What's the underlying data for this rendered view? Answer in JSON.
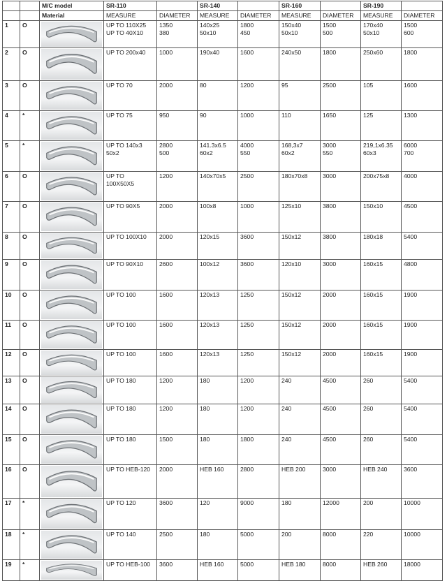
{
  "header": {
    "model_label": "M/C model",
    "material_label": "Material",
    "models": [
      "SR-110",
      "SR-140",
      "SR-160",
      "SR-190"
    ],
    "measure_label": "MEASURE",
    "diameter_label": "DIAMETER"
  },
  "rows": [
    {
      "num": "1",
      "mark": "O",
      "profile-icon": "flat-ring",
      "cells": [
        [
          "UP TO 110X25",
          "UP TO 40X10"
        ],
        [
          "1350",
          "380"
        ],
        [
          "140x25",
          "50x10"
        ],
        [
          "1800",
          "450"
        ],
        [
          "150x40",
          "50x10"
        ],
        [
          "1500",
          "500"
        ],
        [
          "170x40",
          "50x10"
        ],
        [
          "1500",
          "600"
        ]
      ]
    },
    {
      "num": "2",
      "mark": "O",
      "profile-icon": "tall-band-ring",
      "cells": [
        [
          "UP TO 200x40"
        ],
        [
          "1000"
        ],
        [
          "190x40"
        ],
        [
          "1600"
        ],
        [
          "240x50"
        ],
        [
          "1800"
        ],
        [
          "250x60"
        ],
        [
          "1800"
        ]
      ]
    },
    {
      "num": "3",
      "mark": "O",
      "profile-icon": "round-bar-ring",
      "cells": [
        [
          "UP TO 70"
        ],
        [
          "2000"
        ],
        [
          "80"
        ],
        [
          "1200"
        ],
        [
          "95"
        ],
        [
          "2500"
        ],
        [
          "105"
        ],
        [
          "1600"
        ]
      ]
    },
    {
      "num": "4",
      "mark": "*",
      "profile-icon": "round-bar-ring",
      "cells": [
        [
          "UP TO 75"
        ],
        [
          "950"
        ],
        [
          "90"
        ],
        [
          "1000"
        ],
        [
          "110"
        ],
        [
          "1650"
        ],
        [
          "125"
        ],
        [
          "1300"
        ]
      ]
    },
    {
      "num": "5",
      "mark": "*",
      "profile-icon": "tube-ring",
      "cells": [
        [
          "UP TO 140x3",
          "50x2"
        ],
        [
          "2800",
          "500"
        ],
        [
          "141.3x6.5",
          "60x2"
        ],
        [
          "4000",
          "550"
        ],
        [
          "168,3x7",
          "60x2"
        ],
        [
          "3000",
          "550"
        ],
        [
          "219,1x6.35",
          "60x3"
        ],
        [
          "6000",
          "700"
        ]
      ]
    },
    {
      "num": "6",
      "mark": "O",
      "profile-icon": "rect-tube-ring",
      "cells": [
        [
          "UP TO",
          "100X50X5"
        ],
        [
          "1200"
        ],
        [
          "140x70x5"
        ],
        [
          "2500"
        ],
        [
          "180x70x8"
        ],
        [
          "3000"
        ],
        [
          "200x75x8"
        ],
        [
          "4000"
        ]
      ]
    },
    {
      "num": "7",
      "mark": "O",
      "profile-icon": "square-tube-ring",
      "cells": [
        [
          "UP TO 90X5"
        ],
        [
          "2000"
        ],
        [
          "100x8"
        ],
        [
          "1000"
        ],
        [
          "125x10"
        ],
        [
          "3800"
        ],
        [
          "150x10"
        ],
        [
          "4500"
        ]
      ]
    },
    {
      "num": "8",
      "mark": "O",
      "profile-icon": "flat-bar-ring",
      "cells": [
        [
          "UP TO 100X10"
        ],
        [
          "2000"
        ],
        [
          "120x15"
        ],
        [
          "3600"
        ],
        [
          "150x12"
        ],
        [
          "3800"
        ],
        [
          "180x18"
        ],
        [
          "5400"
        ]
      ]
    },
    {
      "num": "9",
      "mark": "O",
      "profile-icon": "angle-ring",
      "cells": [
        [
          "UP TO 90X10"
        ],
        [
          "2600"
        ],
        [
          "100x12"
        ],
        [
          "3600"
        ],
        [
          "120x10"
        ],
        [
          "3000"
        ],
        [
          "160x15"
        ],
        [
          "4800"
        ]
      ]
    },
    {
      "num": "10",
      "mark": "O",
      "profile-icon": "angle-ring",
      "cells": [
        [
          "UP TO 100"
        ],
        [
          "1600"
        ],
        [
          "120x13"
        ],
        [
          "1250"
        ],
        [
          "150x12"
        ],
        [
          "2000"
        ],
        [
          "160x15"
        ],
        [
          "1900"
        ]
      ]
    },
    {
      "num": "11",
      "mark": "O",
      "profile-icon": "angle-ring",
      "cells": [
        [
          "UP TO 100"
        ],
        [
          "1600"
        ],
        [
          "120x13"
        ],
        [
          "1250"
        ],
        [
          "150x12"
        ],
        [
          "2000"
        ],
        [
          "160x15"
        ],
        [
          "1900"
        ]
      ]
    },
    {
      "num": "12",
      "mark": "O",
      "profile-icon": "angle-ring",
      "cells": [
        [
          "UP TO 100"
        ],
        [
          "1600"
        ],
        [
          "120x13"
        ],
        [
          "1250"
        ],
        [
          "150x12"
        ],
        [
          "2000"
        ],
        [
          "160x15"
        ],
        [
          "1900"
        ]
      ]
    },
    {
      "num": "13",
      "mark": "O",
      "profile-icon": "channel-ring",
      "cells": [
        [
          "UP TO 180"
        ],
        [
          "1200"
        ],
        [
          "180"
        ],
        [
          "1200"
        ],
        [
          "240"
        ],
        [
          "4500"
        ],
        [
          "260"
        ],
        [
          "5400"
        ]
      ]
    },
    {
      "num": "14",
      "mark": "O",
      "profile-icon": "channel-ring",
      "cells": [
        [
          "UP TO 180"
        ],
        [
          "1200"
        ],
        [
          "180"
        ],
        [
          "1200"
        ],
        [
          "240"
        ],
        [
          "4500"
        ],
        [
          "260"
        ],
        [
          "5400"
        ]
      ]
    },
    {
      "num": "15",
      "mark": "O",
      "profile-icon": "channel-ring",
      "cells": [
        [
          "UP TO 180"
        ],
        [
          "1500"
        ],
        [
          "180"
        ],
        [
          "1800"
        ],
        [
          "240"
        ],
        [
          "4500"
        ],
        [
          "260"
        ],
        [
          "5400"
        ]
      ]
    },
    {
      "num": "16",
      "mark": "O",
      "profile-icon": "heb-ring",
      "cells": [
        [
          "UP TO HEB-120"
        ],
        [
          "2000"
        ],
        [
          "HEB 160"
        ],
        [
          "2800"
        ],
        [
          "HEB 200"
        ],
        [
          "3000"
        ],
        [
          "HEB 240"
        ],
        [
          "3600"
        ]
      ]
    },
    {
      "num": "17",
      "mark": "*",
      "profile-icon": "ipe-ring",
      "cells": [
        [
          "UP TO 120"
        ],
        [
          "3600"
        ],
        [
          "120"
        ],
        [
          "9000"
        ],
        [
          "180"
        ],
        [
          "12000"
        ],
        [
          "200"
        ],
        [
          "10000"
        ]
      ]
    },
    {
      "num": "18",
      "mark": "*",
      "profile-icon": "ipe-ring",
      "cells": [
        [
          "UP TO 140"
        ],
        [
          "2500"
        ],
        [
          "180"
        ],
        [
          "5000"
        ],
        [
          "200"
        ],
        [
          "8000"
        ],
        [
          "220"
        ],
        [
          "10000"
        ]
      ]
    },
    {
      "num": "19",
      "mark": "*",
      "profile-icon": "heb-ring",
      "cells": [
        [
          "UP TO HEB-100"
        ],
        [
          "3600"
        ],
        [
          "HEB 160"
        ],
        [
          "5000"
        ],
        [
          "HEB 180"
        ],
        [
          "8000"
        ],
        [
          "HEB 260"
        ],
        [
          "18000"
        ]
      ]
    }
  ]
}
